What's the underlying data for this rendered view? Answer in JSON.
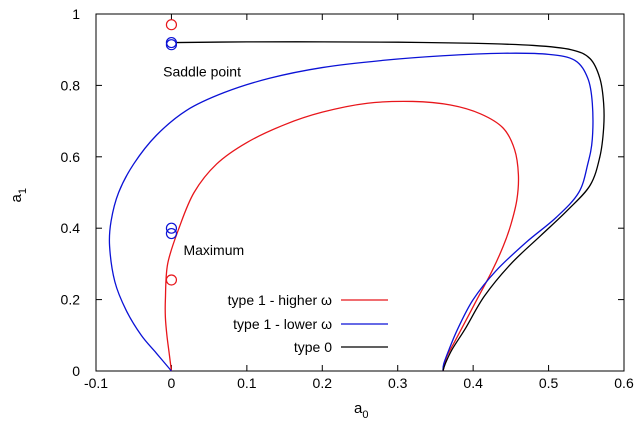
{
  "chart_data": {
    "type": "line",
    "title": "",
    "xlabel": {
      "base": "a",
      "sub": "0"
    },
    "ylabel": {
      "base": "a",
      "sub": "1"
    },
    "xlim": [
      -0.1,
      0.6
    ],
    "ylim": [
      0,
      1
    ],
    "xticks": [
      -0.1,
      0,
      0.1,
      0.2,
      0.3,
      0.4,
      0.5,
      0.6
    ],
    "xtick_labels": [
      "-0.1",
      "0",
      "0.1",
      "0.2",
      "0.3",
      "0.4",
      "0.5",
      "0.6"
    ],
    "yticks": [
      0,
      0.2,
      0.4,
      0.6,
      0.8,
      1
    ],
    "ytick_labels": [
      "0",
      "0.2",
      "0.4",
      "0.6",
      "0.8",
      "1"
    ],
    "grid": false,
    "legend_position": "bottom-right",
    "series": [
      {
        "name": "type 1 - higher ω",
        "color": "#e8161b",
        "points": [
          [
            0,
            0
          ],
          [
            -0.003,
            0.05
          ],
          [
            -0.006,
            0.1
          ],
          [
            -0.008,
            0.15
          ],
          [
            -0.008,
            0.2
          ],
          [
            -0.005,
            0.3
          ],
          [
            0.01,
            0.4
          ],
          [
            0.03,
            0.5
          ],
          [
            0.06,
            0.58
          ],
          [
            0.1,
            0.64
          ],
          [
            0.15,
            0.69
          ],
          [
            0.2,
            0.725
          ],
          [
            0.26,
            0.75
          ],
          [
            0.32,
            0.755
          ],
          [
            0.37,
            0.745
          ],
          [
            0.41,
            0.72
          ],
          [
            0.44,
            0.68
          ],
          [
            0.455,
            0.62
          ],
          [
            0.46,
            0.55
          ],
          [
            0.458,
            0.48
          ],
          [
            0.45,
            0.41
          ],
          [
            0.44,
            0.35
          ],
          [
            0.425,
            0.28
          ],
          [
            0.405,
            0.2
          ],
          [
            0.39,
            0.14
          ],
          [
            0.375,
            0.08
          ],
          [
            0.365,
            0.04
          ],
          [
            0.36,
            0
          ]
        ]
      },
      {
        "name": "type 1 - lower ω",
        "color": "#0b12d6",
        "points": [
          [
            0,
            0
          ],
          [
            -0.02,
            0.05
          ],
          [
            -0.04,
            0.1
          ],
          [
            -0.06,
            0.17
          ],
          [
            -0.075,
            0.25
          ],
          [
            -0.082,
            0.35
          ],
          [
            -0.08,
            0.42
          ],
          [
            -0.07,
            0.5
          ],
          [
            -0.05,
            0.58
          ],
          [
            -0.02,
            0.66
          ],
          [
            0.02,
            0.73
          ],
          [
            0.07,
            0.78
          ],
          [
            0.13,
            0.82
          ],
          [
            0.2,
            0.85
          ],
          [
            0.28,
            0.87
          ],
          [
            0.36,
            0.883
          ],
          [
            0.44,
            0.89
          ],
          [
            0.5,
            0.887
          ],
          [
            0.535,
            0.87
          ],
          [
            0.552,
            0.82
          ],
          [
            0.558,
            0.75
          ],
          [
            0.558,
            0.65
          ],
          [
            0.552,
            0.58
          ],
          [
            0.54,
            0.5
          ],
          [
            0.51,
            0.43
          ],
          [
            0.47,
            0.36
          ],
          [
            0.43,
            0.28
          ],
          [
            0.4,
            0.2
          ],
          [
            0.38,
            0.12
          ],
          [
            0.368,
            0.06
          ],
          [
            0.361,
            0.02
          ],
          [
            0.36,
            0
          ]
        ]
      },
      {
        "name": "type 0",
        "color": "#000000",
        "points": [
          [
            0.005,
            0.92
          ],
          [
            0.1,
            0.922
          ],
          [
            0.2,
            0.922
          ],
          [
            0.3,
            0.921
          ],
          [
            0.4,
            0.918
          ],
          [
            0.48,
            0.912
          ],
          [
            0.53,
            0.9
          ],
          [
            0.555,
            0.875
          ],
          [
            0.568,
            0.82
          ],
          [
            0.573,
            0.75
          ],
          [
            0.573,
            0.68
          ],
          [
            0.568,
            0.6
          ],
          [
            0.555,
            0.52
          ],
          [
            0.525,
            0.45
          ],
          [
            0.49,
            0.38
          ],
          [
            0.45,
            0.3
          ],
          [
            0.415,
            0.21
          ],
          [
            0.39,
            0.12
          ],
          [
            0.372,
            0.06
          ],
          [
            0.363,
            0.02
          ],
          [
            0.36,
            0
          ]
        ]
      }
    ],
    "markers": [
      {
        "x": 0,
        "y": 0.97,
        "color": "#e8161b"
      },
      {
        "x": 0,
        "y": 0.92,
        "color": "#0b12d6"
      },
      {
        "x": 0,
        "y": 0.914,
        "color": "#0b12d6"
      },
      {
        "x": 0,
        "y": 0.4,
        "color": "#0b12d6"
      },
      {
        "x": 0,
        "y": 0.385,
        "color": "#0b12d6"
      },
      {
        "x": 0,
        "y": 0.255,
        "color": "#e8161b"
      }
    ],
    "annotations": [
      {
        "text": "Saddle point",
        "x": -0.011,
        "y": 0.825
      },
      {
        "text": "Maximum",
        "x": 0.016,
        "y": 0.325
      }
    ]
  }
}
